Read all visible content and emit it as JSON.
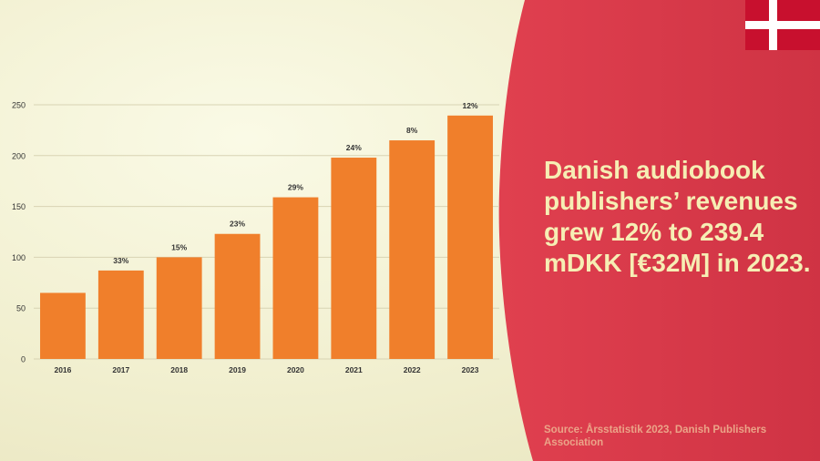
{
  "headline": "Danish audiobook publishers’ revenues grew 12% to 239.4 mDKK [€32M] in 2023.",
  "source": "Source: Årsstatistik 2023, Danish Publishers Association",
  "flag": {
    "name": "denmark-flag",
    "colors": {
      "field": "#c8102e",
      "cross": "#ffffff"
    }
  },
  "colors": {
    "bar": "#f07f2b",
    "panel": "#d83a48",
    "headline": "#f6eeb4",
    "source": "#eba488"
  },
  "chart_data": {
    "type": "bar",
    "categories": [
      "2016",
      "2017",
      "2018",
      "2019",
      "2020",
      "2021",
      "2022",
      "2023"
    ],
    "values": [
      65,
      87,
      100,
      123,
      159,
      198,
      215,
      239.4
    ],
    "data_labels": [
      "",
      "33%",
      "15%",
      "23%",
      "29%",
      "24%",
      "8%",
      "12%"
    ],
    "title": "",
    "xlabel": "",
    "ylabel": "",
    "ylim": [
      0,
      250
    ],
    "yticks": [
      0,
      50,
      100,
      150,
      200,
      250
    ],
    "grid": true,
    "legend": "none"
  }
}
